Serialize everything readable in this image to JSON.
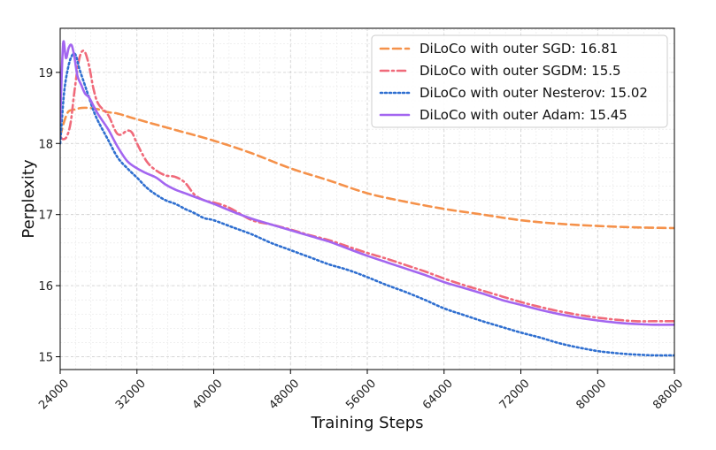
{
  "chart_data": {
    "type": "line",
    "title": "",
    "xlabel": "Training Steps",
    "ylabel": "Perplexity",
    "xlim": [
      24000,
      88000
    ],
    "ylim": [
      14.82,
      19.62
    ],
    "x_ticks": [
      24000,
      32000,
      40000,
      48000,
      56000,
      64000,
      72000,
      80000,
      88000
    ],
    "y_ticks": [
      15,
      16,
      17,
      18,
      19
    ],
    "grid": true,
    "legend_position": "top-right",
    "series": [
      {
        "name": "DiLoCo with outer SGD: 16.81",
        "color": "#f5914a",
        "dash": "dashed",
        "x": [
          24000,
          24400,
          24800,
          25200,
          25600,
          26200,
          27000,
          28000,
          29000,
          30000,
          32000,
          36000,
          40000,
          44000,
          48000,
          52000,
          56000,
          60000,
          64000,
          68000,
          72000,
          76000,
          80000,
          84000,
          88000
        ],
        "y": [
          18.1,
          18.3,
          18.44,
          18.47,
          18.48,
          18.5,
          18.5,
          18.48,
          18.44,
          18.42,
          18.34,
          18.19,
          18.04,
          17.86,
          17.65,
          17.48,
          17.3,
          17.18,
          17.08,
          17.0,
          16.92,
          16.87,
          16.84,
          16.82,
          16.81
        ]
      },
      {
        "name": "DiLoCo with outer SGDM: 15.5",
        "color": "#f06a7a",
        "dash": "dashdot",
        "x": [
          24000,
          24300,
          24700,
          25100,
          25500,
          26000,
          26500,
          27000,
          27500,
          28000,
          29000,
          30000,
          31000,
          31500,
          32000,
          33000,
          34000,
          35000,
          36000,
          37000,
          38000,
          39000,
          40000,
          41000,
          42000,
          44000,
          46000,
          48000,
          50000,
          52000,
          54000,
          56000,
          58000,
          60000,
          62000,
          64000,
          66000,
          68000,
          70000,
          72000,
          74000,
          76000,
          78000,
          80000,
          82000,
          84000,
          86000,
          88000
        ],
        "y": [
          18.1,
          18.06,
          18.1,
          18.3,
          18.75,
          19.2,
          19.3,
          19.1,
          18.75,
          18.55,
          18.4,
          18.13,
          18.18,
          18.15,
          18.0,
          17.75,
          17.62,
          17.55,
          17.53,
          17.45,
          17.28,
          17.2,
          17.17,
          17.13,
          17.07,
          16.92,
          16.86,
          16.79,
          16.71,
          16.64,
          16.55,
          16.46,
          16.38,
          16.29,
          16.2,
          16.1,
          16.01,
          15.93,
          15.85,
          15.77,
          15.7,
          15.64,
          15.59,
          15.55,
          15.52,
          15.5,
          15.5,
          15.5
        ]
      },
      {
        "name": "DiLoCo with outer Nesterov: 15.02",
        "color": "#2f6fd0",
        "dash": "dotted",
        "x": [
          24000,
          24400,
          24800,
          25200,
          25600,
          26000,
          26500,
          27000,
          27500,
          28000,
          29000,
          30000,
          31000,
          32000,
          33000,
          34000,
          35000,
          36000,
          37000,
          38000,
          39000,
          40000,
          42000,
          44000,
          46000,
          48000,
          50000,
          52000,
          54000,
          56000,
          58000,
          60000,
          62000,
          64000,
          66000,
          68000,
          70000,
          72000,
          74000,
          76000,
          78000,
          80000,
          82000,
          84000,
          86000,
          88000
        ],
        "y": [
          18.0,
          18.7,
          19.05,
          19.23,
          19.25,
          19.05,
          18.85,
          18.65,
          18.45,
          18.3,
          18.05,
          17.8,
          17.65,
          17.52,
          17.38,
          17.28,
          17.2,
          17.15,
          17.08,
          17.02,
          16.95,
          16.92,
          16.82,
          16.72,
          16.6,
          16.5,
          16.4,
          16.3,
          16.22,
          16.12,
          16.01,
          15.91,
          15.8,
          15.68,
          15.59,
          15.5,
          15.42,
          15.34,
          15.27,
          15.19,
          15.13,
          15.08,
          15.05,
          15.03,
          15.02,
          15.02
        ]
      },
      {
        "name": "DiLoCo with outer Adam: 15.45",
        "color": "#a366f0",
        "dash": "solid",
        "x": [
          24000,
          24300,
          24600,
          24900,
          25200,
          25500,
          25800,
          26200,
          26600,
          27000,
          27500,
          28000,
          29000,
          30000,
          31000,
          32000,
          33000,
          34000,
          35000,
          36000,
          37000,
          38000,
          40000,
          42000,
          44000,
          46000,
          48000,
          50000,
          52000,
          54000,
          56000,
          58000,
          60000,
          62000,
          64000,
          66000,
          68000,
          70000,
          72000,
          74000,
          76000,
          78000,
          80000,
          82000,
          84000,
          86000,
          88000
        ],
        "y": [
          18.3,
          19.4,
          19.2,
          19.35,
          19.38,
          19.2,
          18.95,
          18.82,
          18.7,
          18.65,
          18.52,
          18.4,
          18.2,
          17.95,
          17.75,
          17.65,
          17.58,
          17.52,
          17.42,
          17.35,
          17.3,
          17.25,
          17.15,
          17.04,
          16.94,
          16.86,
          16.78,
          16.7,
          16.62,
          16.52,
          16.42,
          16.33,
          16.24,
          16.15,
          16.05,
          15.97,
          15.89,
          15.8,
          15.73,
          15.66,
          15.6,
          15.55,
          15.51,
          15.48,
          15.46,
          15.45,
          15.45
        ]
      }
    ]
  }
}
